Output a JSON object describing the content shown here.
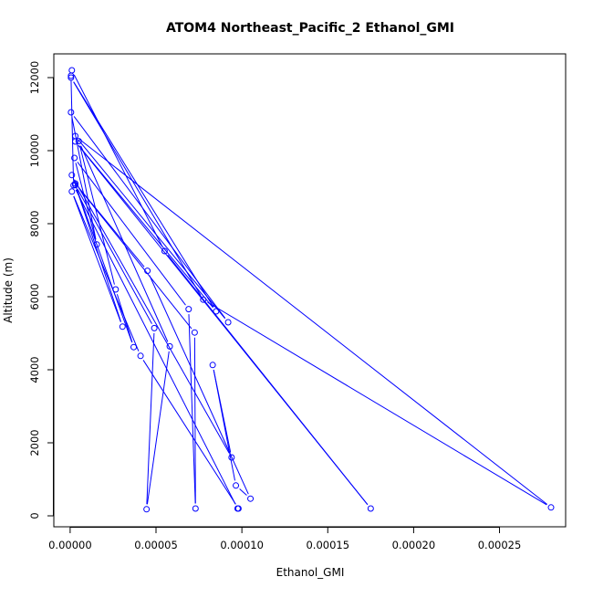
{
  "chart_data": {
    "type": "line",
    "title": "ATOM4 Northeast_Pacific_2 Ethanol_GMI",
    "xlabel": "Ethanol_GMI",
    "ylabel": "Altitude (m)",
    "xlim": [
      -9.5e-06,
      0.0002885
    ],
    "ylim": [
      -300,
      12650
    ],
    "x_ticks": [
      "0.00000",
      "0.00005",
      "0.00010",
      "0.00015",
      "0.00020",
      "0.00025"
    ],
    "x_tick_values": [
      0,
      5e-05,
      0.0001,
      0.00015,
      0.0002,
      0.00025
    ],
    "y_ticks": [
      "0",
      "2000",
      "4000",
      "6000",
      "8000",
      "10000",
      "12000"
    ],
    "y_tick_values": [
      0,
      2000,
      4000,
      6000,
      8000,
      10000,
      12000
    ],
    "grid": false,
    "legend": "none",
    "series_color": "#0000ff",
    "marker": "open-circle",
    "series": [
      {
        "points": [
          {
            "x": 9.75e-05,
            "y": 200
          },
          {
            "x": 2e-06,
            "y": 9050
          },
          {
            "x": 5e-07,
            "y": 12050
          },
          {
            "x": 1e-06,
            "y": 12200
          },
          {
            "x": 5.5e-05,
            "y": 7250
          },
          {
            "x": 0.000175,
            "y": 200
          },
          {
            "x": 3e-06,
            "y": 10250
          },
          {
            "x": 8.5e-05,
            "y": 5600
          },
          {
            "x": 5e-07,
            "y": 12000
          },
          {
            "x": 7.75e-05,
            "y": 5920
          },
          {
            "x": 0.00028,
            "y": 230
          },
          {
            "x": 3e-06,
            "y": 10400
          },
          {
            "x": 9.2e-05,
            "y": 5300
          },
          {
            "x": 5e-07,
            "y": 11050
          },
          {
            "x": 1.55e-05,
            "y": 7430
          },
          {
            "x": 2.5e-06,
            "y": 9800
          },
          {
            "x": 6.9e-05,
            "y": 5660
          },
          {
            "x": 7.3e-05,
            "y": 200
          },
          {
            "x": 7.25e-05,
            "y": 5020
          },
          {
            "x": 3e-06,
            "y": 9100
          },
          {
            "x": 4.5e-05,
            "y": 6710
          },
          {
            "x": 0.000105,
            "y": 470
          },
          {
            "x": 9.65e-05,
            "y": 830
          },
          {
            "x": 8.3e-05,
            "y": 4130
          },
          {
            "x": 9.4e-05,
            "y": 1600
          },
          {
            "x": 1e-06,
            "y": 9330
          },
          {
            "x": 3.7e-05,
            "y": 4620
          },
          {
            "x": 2.65e-05,
            "y": 6200
          },
          {
            "x": 5e-06,
            "y": 10260
          },
          {
            "x": 5.8e-05,
            "y": 4640
          },
          {
            "x": 4.45e-05,
            "y": 180
          },
          {
            "x": 4.9e-05,
            "y": 5140
          },
          {
            "x": 3e-06,
            "y": 9060
          },
          {
            "x": 3.05e-05,
            "y": 5180
          },
          {
            "x": 1e-06,
            "y": 8880
          },
          {
            "x": 4.1e-05,
            "y": 4380
          },
          {
            "x": 9.8e-05,
            "y": 200
          }
        ]
      }
    ]
  }
}
